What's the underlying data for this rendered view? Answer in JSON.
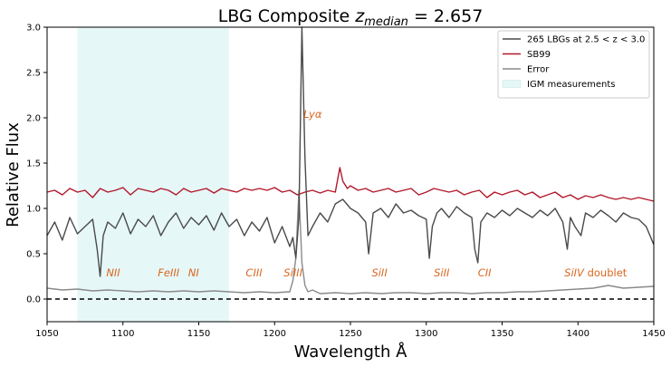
{
  "chart_data": {
    "type": "line",
    "title_main": "LBG Composite ",
    "title_var": "z",
    "title_sub": "median",
    "title_value": " = 2.657",
    "xlabel": "Wavelength Å",
    "ylabel": "Relative Flux",
    "xlim": [
      1050,
      1450
    ],
    "ylim": [
      -0.25,
      3.0
    ],
    "xticks": [
      1050,
      1100,
      1150,
      1200,
      1250,
      1300,
      1350,
      1400,
      1450
    ],
    "yticks": [
      0.0,
      0.5,
      1.0,
      1.5,
      2.0,
      2.5,
      3.0
    ],
    "xtick_labels": [
      "1050",
      "1100",
      "1150",
      "1200",
      "1250",
      "1300",
      "1350",
      "1400",
      "1450"
    ],
    "ytick_labels": [
      "0.0",
      "0.5",
      "1.0",
      "1.5",
      "2.0",
      "2.5",
      "3.0"
    ],
    "grid": false,
    "legend_position": "top-right",
    "shaded_region": {
      "name": "IGM measurements",
      "x_range": [
        1070,
        1170
      ],
      "color": "#e6f7f7"
    },
    "zero_line": {
      "y": 0.0,
      "style": "dashed",
      "color": "#000000"
    },
    "series": [
      {
        "name": "265 LBGs at 2.5 < z < 3.0",
        "color": "#4a4a4a",
        "x": [
          1050,
          1055,
          1060,
          1065,
          1070,
          1075,
          1080,
          1083,
          1085,
          1087,
          1090,
          1095,
          1100,
          1105,
          1110,
          1115,
          1120,
          1125,
          1130,
          1135,
          1140,
          1145,
          1150,
          1155,
          1160,
          1165,
          1170,
          1175,
          1180,
          1185,
          1190,
          1195,
          1200,
          1205,
          1210,
          1212,
          1214,
          1216,
          1218,
          1220,
          1222,
          1225,
          1230,
          1235,
          1240,
          1245,
          1250,
          1255,
          1260,
          1262,
          1265,
          1270,
          1275,
          1280,
          1285,
          1290,
          1295,
          1300,
          1302,
          1304,
          1307,
          1310,
          1315,
          1320,
          1325,
          1330,
          1332,
          1334,
          1336,
          1340,
          1345,
          1350,
          1355,
          1360,
          1365,
          1370,
          1375,
          1380,
          1385,
          1390,
          1393,
          1395,
          1398,
          1402,
          1405,
          1410,
          1415,
          1420,
          1425,
          1430,
          1435,
          1440,
          1445,
          1450
        ],
        "y": [
          0.7,
          0.85,
          0.65,
          0.9,
          0.72,
          0.8,
          0.88,
          0.55,
          0.25,
          0.7,
          0.85,
          0.78,
          0.95,
          0.72,
          0.88,
          0.8,
          0.92,
          0.7,
          0.85,
          0.95,
          0.78,
          0.9,
          0.82,
          0.92,
          0.76,
          0.95,
          0.8,
          0.88,
          0.7,
          0.85,
          0.75,
          0.9,
          0.62,
          0.8,
          0.58,
          0.68,
          0.45,
          0.9,
          3.0,
          1.55,
          0.7,
          0.8,
          0.95,
          0.85,
          1.05,
          1.1,
          1.0,
          0.95,
          0.85,
          0.5,
          0.95,
          1.0,
          0.9,
          1.05,
          0.95,
          0.98,
          0.92,
          0.88,
          0.45,
          0.8,
          0.95,
          1.0,
          0.9,
          1.02,
          0.95,
          0.9,
          0.55,
          0.4,
          0.85,
          0.95,
          0.9,
          0.98,
          0.92,
          1.0,
          0.95,
          0.9,
          0.98,
          0.92,
          1.0,
          0.85,
          0.55,
          0.9,
          0.8,
          0.7,
          0.95,
          0.9,
          0.98,
          0.92,
          0.85,
          0.95,
          0.9,
          0.88,
          0.8,
          0.6
        ]
      },
      {
        "name": "SB99",
        "color": "#b2182b",
        "x": [
          1050,
          1055,
          1060,
          1065,
          1070,
          1075,
          1080,
          1085,
          1090,
          1095,
          1100,
          1105,
          1110,
          1115,
          1120,
          1125,
          1130,
          1135,
          1140,
          1145,
          1150,
          1155,
          1160,
          1165,
          1170,
          1175,
          1180,
          1185,
          1190,
          1195,
          1200,
          1205,
          1210,
          1215,
          1220,
          1225,
          1230,
          1235,
          1240,
          1243,
          1245,
          1248,
          1250,
          1255,
          1260,
          1265,
          1270,
          1275,
          1280,
          1285,
          1290,
          1295,
          1300,
          1305,
          1310,
          1315,
          1320,
          1325,
          1330,
          1335,
          1340,
          1345,
          1350,
          1355,
          1360,
          1365,
          1370,
          1375,
          1380,
          1385,
          1390,
          1395,
          1400,
          1405,
          1410,
          1415,
          1420,
          1425,
          1430,
          1435,
          1440,
          1445,
          1450
        ],
        "y": [
          1.18,
          1.2,
          1.15,
          1.22,
          1.18,
          1.2,
          1.12,
          1.22,
          1.18,
          1.2,
          1.23,
          1.15,
          1.22,
          1.2,
          1.18,
          1.22,
          1.2,
          1.15,
          1.22,
          1.18,
          1.2,
          1.22,
          1.17,
          1.22,
          1.2,
          1.18,
          1.22,
          1.2,
          1.22,
          1.2,
          1.23,
          1.18,
          1.2,
          1.15,
          1.18,
          1.2,
          1.17,
          1.2,
          1.18,
          1.45,
          1.3,
          1.22,
          1.25,
          1.2,
          1.22,
          1.18,
          1.2,
          1.22,
          1.18,
          1.2,
          1.22,
          1.15,
          1.18,
          1.22,
          1.2,
          1.18,
          1.2,
          1.15,
          1.18,
          1.2,
          1.12,
          1.18,
          1.15,
          1.18,
          1.2,
          1.15,
          1.18,
          1.12,
          1.15,
          1.18,
          1.12,
          1.15,
          1.1,
          1.14,
          1.12,
          1.15,
          1.12,
          1.1,
          1.12,
          1.1,
          1.12,
          1.1,
          1.08
        ]
      },
      {
        "name": "Error",
        "color": "#8a8a8a",
        "x": [
          1050,
          1060,
          1070,
          1080,
          1090,
          1100,
          1110,
          1120,
          1130,
          1140,
          1150,
          1160,
          1170,
          1180,
          1190,
          1200,
          1210,
          1212,
          1214,
          1216,
          1218,
          1220,
          1222,
          1225,
          1230,
          1240,
          1250,
          1260,
          1270,
          1280,
          1290,
          1300,
          1310,
          1320,
          1330,
          1340,
          1350,
          1360,
          1370,
          1380,
          1390,
          1400,
          1410,
          1420,
          1430,
          1440,
          1450
        ],
        "y": [
          0.12,
          0.1,
          0.11,
          0.09,
          0.1,
          0.09,
          0.08,
          0.09,
          0.08,
          0.09,
          0.08,
          0.09,
          0.08,
          0.07,
          0.08,
          0.07,
          0.08,
          0.2,
          0.45,
          1.2,
          0.4,
          0.15,
          0.08,
          0.1,
          0.06,
          0.07,
          0.06,
          0.07,
          0.06,
          0.07,
          0.07,
          0.06,
          0.07,
          0.07,
          0.06,
          0.07,
          0.07,
          0.08,
          0.08,
          0.09,
          0.1,
          0.11,
          0.12,
          0.15,
          0.12,
          0.13,
          0.14
        ]
      }
    ],
    "legend": [
      {
        "label": "265 LBGs at 2.5 < z < 3.0",
        "kind": "line",
        "color": "#4a4a4a"
      },
      {
        "label": "SB99",
        "kind": "line",
        "color": "#b2182b"
      },
      {
        "label": "Error",
        "kind": "line",
        "color": "#8a8a8a"
      },
      {
        "label": "IGM measurements",
        "kind": "patch",
        "color": "#e6f7f7"
      }
    ],
    "annotations": [
      {
        "x": 1089,
        "y": 0.25,
        "label": "NII",
        "color": "#d9661f"
      },
      {
        "x": 1123,
        "y": 0.25,
        "label": "FeIII",
        "color": "#d9661f"
      },
      {
        "x": 1143,
        "y": 0.25,
        "label": "NI",
        "color": "#d9661f"
      },
      {
        "x": 1181,
        "y": 0.25,
        "label": "CIII",
        "color": "#d9661f"
      },
      {
        "x": 1206,
        "y": 0.25,
        "label": "SiIII",
        "color": "#d9661f"
      },
      {
        "x": 1219,
        "y": 2.0,
        "label": "Lyα",
        "color": "#d9661f"
      },
      {
        "x": 1264,
        "y": 0.25,
        "label": "SiII",
        "color": "#d9661f"
      },
      {
        "x": 1305,
        "y": 0.25,
        "label": "SiII",
        "color": "#d9661f"
      },
      {
        "x": 1334,
        "y": 0.25,
        "label": "CII",
        "color": "#d9661f"
      },
      {
        "x": 1391,
        "y": 0.25,
        "label": "SiIV",
        "suffix": " doublet",
        "color": "#d9661f"
      }
    ]
  }
}
